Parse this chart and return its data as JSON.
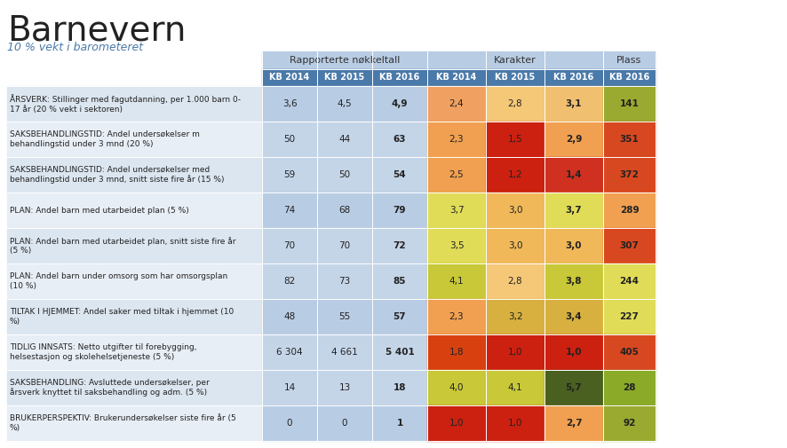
{
  "title": "Barnevern",
  "subtitle": "10 % vekt i barometeret",
  "col_group1_label": "Rapporterte nøkkeltall",
  "col_group2_label": "Karakter",
  "col_group3_label": "Plass",
  "subheaders": [
    "KB 2014",
    "KB 2015",
    "KB 2016",
    "KB 2014",
    "KB 2015",
    "KB 2016",
    "KB 2016"
  ],
  "row_labels": [
    "ÅRSVERK: Stillinger med fagutdanning, per 1.000 barn 0-\n17 år (20 % vekt i sektoren)",
    "SAKSBEHANDLINGSTID: Andel undersøkelser m\nbehandlingstid under 3 mnd (20 %)",
    "SAKSBEHANDLINGSTID: Andel undersøkelser med\nbehandlingstid under 3 mnd, snitt siste fire år (15 %)",
    "PLAN: Andel barn med utarbeidet plan (5 %)",
    "PLAN: Andel barn med utarbeidet plan, snitt siste fire år\n(5 %)",
    "PLAN: Andel barn under omsorg som har omsorgsplan\n(10 %)",
    "TILTAK I HJEMMET: Andel saker med tiltak i hjemmet (10\n%)",
    "TIDLIG INNSATS: Netto utgifter til forebygging,\nhelsestasjon og skolehelsetjeneste (5 %)",
    "SAKSBEHANDLING: Avsluttede undersøkelser, per\nårsverk knyttet til saksbehandling og adm. (5 %)",
    "BRUKERPERSPEKTIV: Brukerundersøkelser siste fire år (5\n%)"
  ],
  "data": [
    [
      "3,6",
      "4,5",
      "4,9",
      "2,4",
      "2,8",
      "3,1",
      "141"
    ],
    [
      "50",
      "44",
      "63",
      "2,3",
      "1,5",
      "2,9",
      "351"
    ],
    [
      "59",
      "50",
      "54",
      "2,5",
      "1,2",
      "1,4",
      "372"
    ],
    [
      "74",
      "68",
      "79",
      "3,7",
      "3,0",
      "3,7",
      "289"
    ],
    [
      "70",
      "70",
      "72",
      "3,5",
      "3,0",
      "3,0",
      "307"
    ],
    [
      "82",
      "73",
      "85",
      "4,1",
      "2,8",
      "3,8",
      "244"
    ],
    [
      "48",
      "55",
      "57",
      "2,3",
      "3,2",
      "3,4",
      "227"
    ],
    [
      "6 304",
      "4 661",
      "5 401",
      "1,8",
      "1,0",
      "1,0",
      "405"
    ],
    [
      "14",
      "13",
      "18",
      "4,0",
      "4,1",
      "5,7",
      "28"
    ],
    [
      "0",
      "0",
      "1",
      "1,0",
      "1,0",
      "2,7",
      "92"
    ]
  ],
  "cell_colors": [
    [
      "#b8cce4",
      "#b8cce4",
      "#b8cce4",
      "#f0a060",
      "#f5c878",
      "#f0c070",
      "#9aaa30"
    ],
    [
      "#c5d5e8",
      "#c5d5e8",
      "#c5d5e8",
      "#f0a050",
      "#cc2010",
      "#f0a050",
      "#d84820"
    ],
    [
      "#c5d5e8",
      "#c5d5e8",
      "#c5d5e8",
      "#f0a050",
      "#cc2010",
      "#d03020",
      "#d84820"
    ],
    [
      "#b8cce4",
      "#b8cce4",
      "#b8cce4",
      "#e0dc58",
      "#f0b858",
      "#e0dc58",
      "#f0a050"
    ],
    [
      "#c5d5e8",
      "#c5d5e8",
      "#c5d5e8",
      "#e0dc58",
      "#f0b858",
      "#f0b858",
      "#d84820"
    ],
    [
      "#c5d5e8",
      "#c5d5e8",
      "#c5d5e8",
      "#c8c838",
      "#f5c878",
      "#c8c838",
      "#e0dc58"
    ],
    [
      "#b8cce4",
      "#b8cce4",
      "#b8cce4",
      "#f0a050",
      "#d8b040",
      "#d8b040",
      "#e0dc58"
    ],
    [
      "#c5d5e8",
      "#c5d5e8",
      "#c5d5e8",
      "#d84010",
      "#cc2010",
      "#cc2010",
      "#d84820"
    ],
    [
      "#c5d5e8",
      "#c5d5e8",
      "#c5d5e8",
      "#c8c838",
      "#c8c838",
      "#4a6020",
      "#8aaa28"
    ],
    [
      "#b8cce4",
      "#b8cce4",
      "#b8cce4",
      "#cc2010",
      "#cc2010",
      "#f0a050",
      "#9aaa30"
    ]
  ],
  "subheader_bg": "#4a7aaa",
  "subheader_color": "#ffffff",
  "group_header_bg": "#b8cce4",
  "group_header_color": "#333333",
  "row_label_bg_even": "#dce6f0",
  "row_label_bg_odd": "#e8eef6",
  "background_color": "#ffffff",
  "title_color": "#222222",
  "subtitle_color": "#4a7aaa"
}
